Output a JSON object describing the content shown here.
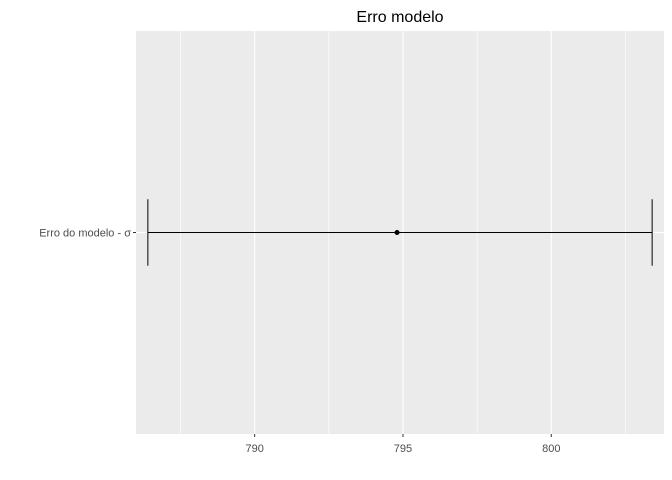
{
  "chart_data": {
    "type": "errorbar",
    "title": "Erro modelo",
    "xlabel": "",
    "ylabel": "",
    "categories": [
      "Erro do modelo - σ"
    ],
    "series": [
      {
        "estimate": 794.8,
        "lower": 786.4,
        "upper": 803.4
      }
    ],
    "xlim": [
      786.0,
      803.8
    ],
    "x_ticks": [
      790,
      795,
      800
    ],
    "x_minor_ticks": [
      787.5,
      792.5,
      797.5,
      802.5
    ],
    "grid": true,
    "colors": {
      "panel": "#ebebeb",
      "grid": "#ffffff",
      "mark": "#000000",
      "tick_text": "#4d4d4d",
      "tick": "#333333"
    }
  }
}
